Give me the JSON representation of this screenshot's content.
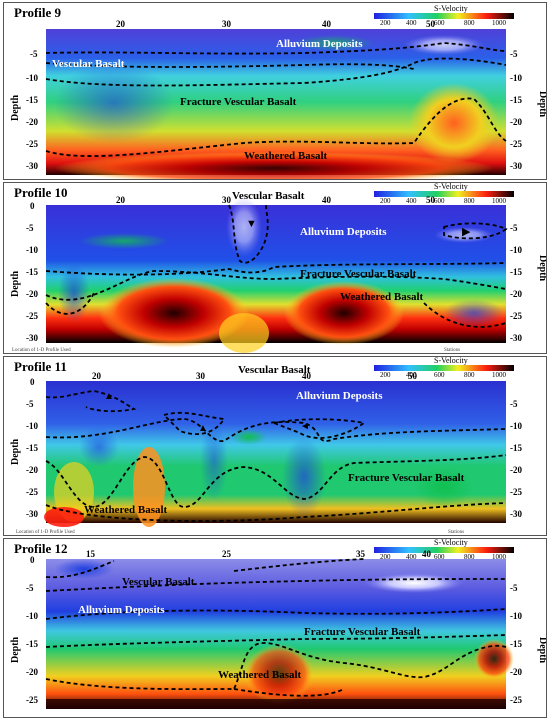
{
  "legend_title": "S-Velocity",
  "legend_ticks": [
    "200",
    "400",
    "600",
    "800",
    "1000"
  ],
  "depth_label": "Depth",
  "footer": {
    "location_note_a": "Location of 1-D Profile Used",
    "location_note_b": "Location of 1-D Profile Used",
    "stations_a": "Stations",
    "stations_b": "Stations"
  },
  "profiles": [
    {
      "title": "Profile 9",
      "top_ticks": [
        "20",
        "30",
        "40",
        "50"
      ],
      "left_ticks": [
        "-5",
        "-10",
        "-15",
        "-20",
        "-25",
        "-30"
      ],
      "right_ticks": [
        "-5",
        "-10",
        "-15",
        "-20",
        "-25",
        "-30"
      ],
      "labels": [
        "Alluvium Deposits",
        "Vescular Basalt",
        "Fracture Vescular Basalt",
        "Weathered Basalt"
      ]
    },
    {
      "title": "Profile 10",
      "top_ticks": [
        "20",
        "30",
        "40",
        "50"
      ],
      "left_ticks": [
        "0",
        "-5",
        "-10",
        "-15",
        "-20",
        "-25",
        "-30"
      ],
      "right_ticks": [
        "-5",
        "-10",
        "-15",
        "-20",
        "-25",
        "-30"
      ],
      "labels": [
        "Vescular Basalt",
        "Alluvium Deposits",
        "Fracture Vescular Basalt",
        "Weathered Basalt"
      ]
    },
    {
      "title": "Profile 11",
      "top_ticks": [
        "20",
        "30",
        "40",
        "50"
      ],
      "left_ticks": [
        "0",
        "-5",
        "-10",
        "-15",
        "-20",
        "-25",
        "-30"
      ],
      "right_ticks": [
        "-5",
        "-10",
        "-15",
        "-20",
        "-25",
        "-30"
      ],
      "labels": [
        "Vescular Basalt",
        "Alluvium Deposits",
        "Fracture Vescular Basalt",
        "Weathered Basalt"
      ]
    },
    {
      "title": "Profile 12",
      "top_ticks": [
        "15",
        "25",
        "35",
        "40"
      ],
      "left_ticks": [
        "0",
        "-5",
        "-10",
        "-15",
        "-20",
        "-25"
      ],
      "right_ticks": [
        "-5",
        "-10",
        "-15",
        "-20",
        "-25"
      ],
      "labels": [
        "Vescular Basalt",
        "Alluvium Deposits",
        "Fracture Vescular Basalt",
        "Weathered Basalt"
      ]
    }
  ]
}
